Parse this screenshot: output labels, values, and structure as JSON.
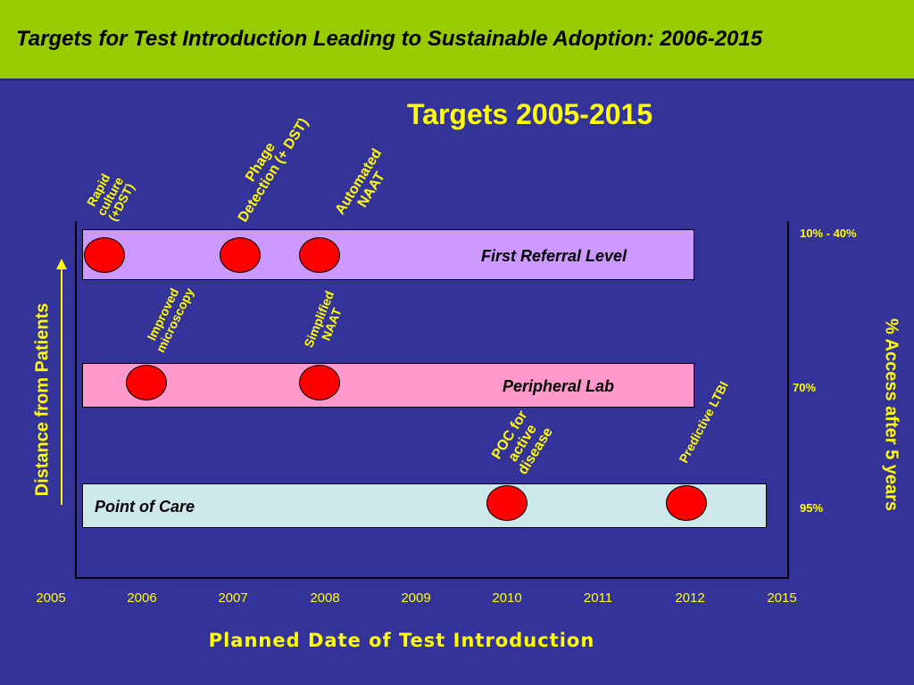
{
  "header": {
    "title": "Targets for Test Introduction Leading to Sustainable Adoption: 2006-2015"
  },
  "chart": {
    "title": "Targets 2005-2015",
    "x_axis_title": "Planned Date of Test Introduction",
    "y_axis_left": "Distance from Patients",
    "y_axis_right": "% Access after 5  years",
    "years": [
      "2005",
      "2006",
      "2007",
      "2008",
      "2009",
      "2010",
      "2011",
      "2012",
      "2015"
    ],
    "levels": [
      {
        "label": "First Referral Level",
        "color": "#cc99ff",
        "access": "10% - 40%"
      },
      {
        "label": "Peripheral Lab",
        "color": "#ff99cc",
        "access": "70%"
      },
      {
        "label": "Point of Care",
        "color": "#cce8ea",
        "access": "95%"
      }
    ],
    "tests": [
      {
        "label": "Rapid\nculture\n(+DST)",
        "level": "First Referral Level",
        "year": 2005.6
      },
      {
        "label": "Phage\nDetection (+ DST)",
        "level": "First Referral Level",
        "year": 2007.1
      },
      {
        "label": "Automated\nNAAT",
        "level": "First Referral Level",
        "year": 2008
      },
      {
        "label": "Improved\nmicroscopy",
        "level": "Peripheral Lab",
        "year": 2006.1
      },
      {
        "label": "Simplified\nNAAT",
        "level": "Peripheral Lab",
        "year": 2008
      },
      {
        "label": "POC for\nactive\ndisease",
        "level": "Point of Care",
        "year": 2010
      },
      {
        "label": "Predictive LTBI",
        "level": "Point of Care",
        "year": 2012
      }
    ]
  }
}
